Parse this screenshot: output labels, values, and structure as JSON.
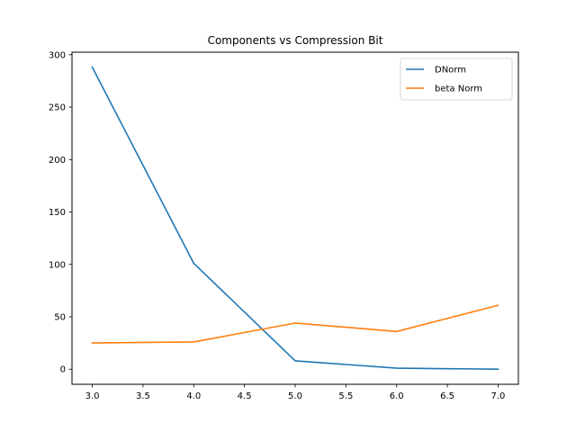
{
  "chart_data": {
    "type": "line",
    "title": "Components vs Compression Bit",
    "xlabel": "",
    "ylabel": "",
    "x": [
      3.0,
      4.0,
      5.0,
      6.0,
      7.0
    ],
    "series": [
      {
        "name": "DNorm",
        "color": "#1f77b4",
        "values": [
          288,
          101,
          8,
          1,
          0
        ]
      },
      {
        "name": "beta Norm",
        "color": "#ff7f0e",
        "values": [
          25,
          26,
          44,
          36,
          61
        ]
      }
    ],
    "xlim": [
      2.8,
      7.2
    ],
    "ylim": [
      -14.4,
      302.4
    ],
    "xticks": [
      "3.0",
      "3.5",
      "4.0",
      "4.5",
      "5.0",
      "5.5",
      "6.0",
      "6.5",
      "7.0"
    ],
    "yticks": [
      "0",
      "50",
      "100",
      "150",
      "200",
      "250",
      "300"
    ],
    "grid": false,
    "legend": "top-right"
  }
}
